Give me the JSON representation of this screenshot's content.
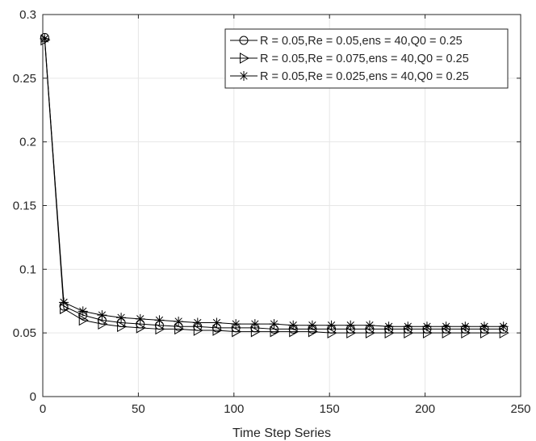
{
  "chart_data": {
    "type": "line",
    "title": "",
    "xlabel": "Time Step Series",
    "ylabel": "",
    "xlim": [
      0,
      250
    ],
    "ylim": [
      0,
      0.3
    ],
    "xticks": [
      "0",
      "50",
      "100",
      "150",
      "200",
      "250"
    ],
    "yticks": [
      "0",
      "0.05",
      "0.1",
      "0.15",
      "0.2",
      "0.25",
      "0.3"
    ],
    "grid": true,
    "legend_position": "top-right",
    "x": [
      1,
      11,
      21,
      31,
      41,
      51,
      61,
      71,
      81,
      91,
      101,
      111,
      121,
      131,
      141,
      151,
      161,
      171,
      181,
      191,
      201,
      211,
      221,
      231,
      241
    ],
    "series": [
      {
        "name": "R = 0.05,Re = 0.05,ens = 40,Q0 = 0.25",
        "marker": "circle",
        "values": [
          0.282,
          0.071,
          0.064,
          0.06,
          0.058,
          0.057,
          0.056,
          0.055,
          0.055,
          0.054,
          0.054,
          0.054,
          0.053,
          0.053,
          0.053,
          0.053,
          0.053,
          0.053,
          0.053,
          0.053,
          0.053,
          0.053,
          0.053,
          0.053,
          0.053
        ]
      },
      {
        "name": "R = 0.05,Re = 0.075,ens = 40,Q0 = 0.25",
        "marker": "triangle-right",
        "values": [
          0.28,
          0.069,
          0.06,
          0.057,
          0.055,
          0.054,
          0.053,
          0.053,
          0.052,
          0.052,
          0.051,
          0.051,
          0.051,
          0.051,
          0.051,
          0.05,
          0.05,
          0.05,
          0.05,
          0.05,
          0.05,
          0.05,
          0.05,
          0.05,
          0.05
        ]
      },
      {
        "name": "R = 0.05,Re = 0.025,ens = 40,Q0 = 0.25",
        "marker": "asterisk",
        "values": [
          0.281,
          0.074,
          0.067,
          0.064,
          0.062,
          0.061,
          0.06,
          0.059,
          0.058,
          0.058,
          0.057,
          0.057,
          0.057,
          0.056,
          0.056,
          0.056,
          0.056,
          0.056,
          0.055,
          0.055,
          0.055,
          0.055,
          0.055,
          0.055,
          0.055
        ]
      }
    ],
    "colors": {
      "line": "#000000",
      "grid": "#e6e6e6",
      "axis": "#262626"
    }
  }
}
